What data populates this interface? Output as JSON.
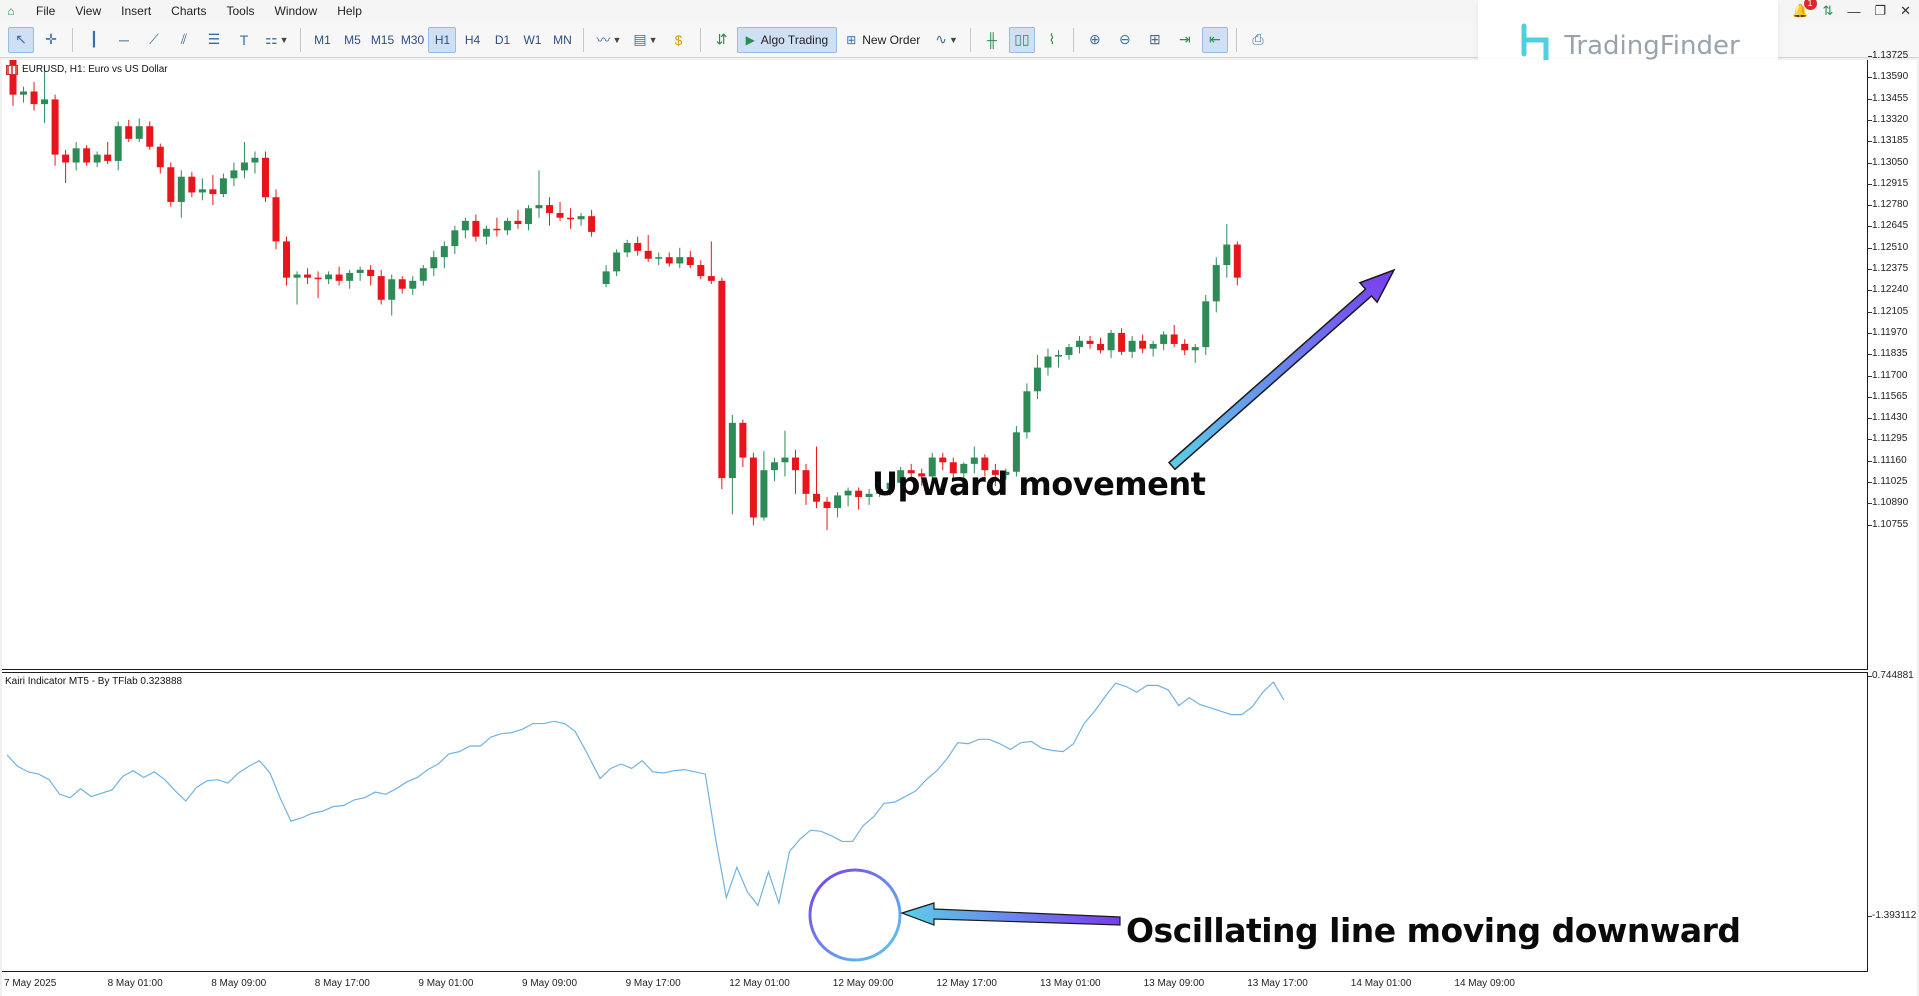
{
  "menu": {
    "items": [
      "File",
      "View",
      "Insert",
      "Charts",
      "Tools",
      "Window",
      "Help"
    ]
  },
  "window_controls": {
    "notifications_count": "1"
  },
  "toolbar": {
    "timeframes": [
      "M1",
      "M5",
      "M15",
      "M30",
      "H1",
      "H4",
      "D1",
      "W1",
      "MN"
    ],
    "active_timeframe": "H1",
    "algo_trading_label": "Algo Trading",
    "new_order_label": "New Order"
  },
  "watermark": {
    "text": "TradingFinder"
  },
  "chart": {
    "symbol_title": "EURUSD, H1:  Euro vs US Dollar",
    "indicator_title": "Kairi Indicator MT5 - By TFlab 0.323888",
    "price_scale": [
      "1.13725",
      "1.13590",
      "1.13455",
      "1.13320",
      "1.13185",
      "1.13050",
      "1.12915",
      "1.12780",
      "1.12645",
      "1.12510",
      "1.12375",
      "1.12240",
      "1.12105",
      "1.11970",
      "1.11835",
      "1.11700",
      "1.11565",
      "1.11430",
      "1.11295",
      "1.11160",
      "1.11025",
      "1.10890",
      "1.10755"
    ],
    "indicator_scale": [
      "0.744881",
      "-1.393112"
    ],
    "time_labels": [
      "7 May 2025",
      "8 May 01:00",
      "8 May 09:00",
      "8 May 17:00",
      "9 May 01:00",
      "9 May 09:00",
      "9 May 17:00",
      "12 May 01:00",
      "12 May 09:00",
      "12 May 17:00",
      "13 May 01:00",
      "13 May 09:00",
      "13 May 17:00",
      "14 May 01:00",
      "14 May 09:00"
    ],
    "annotation_upward": "Upward movement",
    "annotation_oscillating": "Oscillating line moving downward",
    "colors": {
      "bull": "#2e8b57",
      "bear": "#e8161c",
      "indicator_line": "#6fb3e0",
      "arrow_light": "#5ad0e8",
      "arrow_dark": "#7a3cf0"
    }
  },
  "chart_data": {
    "type": "candlestick",
    "symbol": "EURUSD",
    "timeframe": "H1",
    "ylim": [
      1.107,
      1.138
    ],
    "candles": [
      [
        1.1372,
        1.1376,
        1.1341,
        1.1348
      ],
      [
        1.1348,
        1.1353,
        1.1343,
        1.135
      ],
      [
        1.135,
        1.1356,
        1.1338,
        1.1342
      ],
      [
        1.1342,
        1.1366,
        1.133,
        1.1345
      ],
      [
        1.1345,
        1.1348,
        1.1303,
        1.131
      ],
      [
        1.131,
        1.1313,
        1.1292,
        1.1305
      ],
      [
        1.1305,
        1.1318,
        1.13,
        1.1314
      ],
      [
        1.1314,
        1.1316,
        1.1303,
        1.1305
      ],
      [
        1.1305,
        1.1312,
        1.1302,
        1.131
      ],
      [
        1.131,
        1.1318,
        1.1304,
        1.1306
      ],
      [
        1.1306,
        1.1331,
        1.13,
        1.1328
      ],
      [
        1.1328,
        1.1332,
        1.1318,
        1.132
      ],
      [
        1.132,
        1.1333,
        1.1318,
        1.1328
      ],
      [
        1.1328,
        1.1331,
        1.1313,
        1.1315
      ],
      [
        1.1315,
        1.1317,
        1.1298,
        1.1302
      ],
      [
        1.1302,
        1.1305,
        1.1277,
        1.128
      ],
      [
        1.128,
        1.13,
        1.127,
        1.1296
      ],
      [
        1.1296,
        1.1299,
        1.1283,
        1.1286
      ],
      [
        1.1286,
        1.1295,
        1.1281,
        1.1288
      ],
      [
        1.1288,
        1.1297,
        1.1278,
        1.1285
      ],
      [
        1.1285,
        1.1298,
        1.1283,
        1.1295
      ],
      [
        1.1295,
        1.1305,
        1.129,
        1.13
      ],
      [
        1.13,
        1.1318,
        1.1295,
        1.1305
      ],
      [
        1.1305,
        1.1312,
        1.1298,
        1.1308
      ],
      [
        1.1308,
        1.1312,
        1.128,
        1.1283
      ],
      [
        1.1283,
        1.1288,
        1.125,
        1.1255
      ],
      [
        1.1255,
        1.1258,
        1.1227,
        1.1232
      ],
      [
        1.1232,
        1.1236,
        1.1215,
        1.1234
      ],
      [
        1.1234,
        1.1238,
        1.1228,
        1.1232
      ],
      [
        1.1232,
        1.1236,
        1.1219,
        1.1231
      ],
      [
        1.1231,
        1.1236,
        1.1228,
        1.1234
      ],
      [
        1.1234,
        1.1239,
        1.1227,
        1.123
      ],
      [
        1.123,
        1.1237,
        1.1225,
        1.1235
      ],
      [
        1.1235,
        1.1239,
        1.123,
        1.1237
      ],
      [
        1.1237,
        1.124,
        1.1227,
        1.1233
      ],
      [
        1.1233,
        1.1237,
        1.1215,
        1.1218
      ],
      [
        1.1218,
        1.1234,
        1.1208,
        1.1231
      ],
      [
        1.1231,
        1.1233,
        1.1222,
        1.1225
      ],
      [
        1.1225,
        1.1233,
        1.1221,
        1.123
      ],
      [
        1.123,
        1.124,
        1.1227,
        1.1238
      ],
      [
        1.1238,
        1.1249,
        1.1233,
        1.1245
      ],
      [
        1.1245,
        1.1255,
        1.1238,
        1.1252
      ],
      [
        1.1252,
        1.1265,
        1.1247,
        1.1262
      ],
      [
        1.1262,
        1.127,
        1.1257,
        1.1268
      ],
      [
        1.1268,
        1.1272,
        1.1255,
        1.1258
      ],
      [
        1.1258,
        1.1265,
        1.1253,
        1.1263
      ],
      [
        1.1263,
        1.127,
        1.1258,
        1.1262
      ],
      [
        1.1262,
        1.127,
        1.1259,
        1.1268
      ],
      [
        1.1268,
        1.1275,
        1.1263,
        1.1266
      ],
      [
        1.1266,
        1.1278,
        1.1262,
        1.1276
      ],
      [
        1.1276,
        1.13,
        1.127,
        1.1278
      ],
      [
        1.1278,
        1.1283,
        1.1265,
        1.1273
      ],
      [
        1.1273,
        1.128,
        1.1268,
        1.127
      ],
      [
        1.127,
        1.1276,
        1.1263,
        1.1269
      ],
      [
        1.1269,
        1.1273,
        1.1265,
        1.1271
      ],
      [
        1.1271,
        1.1275,
        1.1258,
        1.1261
      ],
      [
        1.1228,
        1.124,
        1.1226,
        1.1236
      ],
      [
        1.1236,
        1.125,
        1.1233,
        1.1248
      ],
      [
        1.1248,
        1.1256,
        1.1245,
        1.1254
      ],
      [
        1.1254,
        1.1258,
        1.1246,
        1.1249
      ],
      [
        1.1249,
        1.1259,
        1.1242,
        1.1244
      ],
      [
        1.1244,
        1.1248,
        1.124,
        1.1245
      ],
      [
        1.1245,
        1.1248,
        1.1239,
        1.1241
      ],
      [
        1.1241,
        1.1251,
        1.1238,
        1.1245
      ],
      [
        1.1245,
        1.1249,
        1.1238,
        1.124
      ],
      [
        1.124,
        1.1243,
        1.1231,
        1.1233
      ],
      [
        1.1233,
        1.1255,
        1.1228,
        1.123
      ],
      [
        1.123,
        1.1232,
        1.1098,
        1.1105
      ],
      [
        1.1105,
        1.1145,
        1.1082,
        1.114
      ],
      [
        1.114,
        1.1142,
        1.1112,
        1.1118
      ],
      [
        1.1118,
        1.1121,
        1.1075,
        1.108
      ],
      [
        1.108,
        1.1122,
        1.1078,
        1.111
      ],
      [
        1.111,
        1.1118,
        1.1103,
        1.1115
      ],
      [
        1.1115,
        1.1135,
        1.1106,
        1.1118
      ],
      [
        1.1118,
        1.1123,
        1.1095,
        1.111
      ],
      [
        1.111,
        1.1114,
        1.1088,
        1.1095
      ],
      [
        1.1095,
        1.1125,
        1.1086,
        1.109
      ],
      [
        1.109,
        1.1093,
        1.1072,
        1.1086
      ],
      [
        1.1086,
        1.1096,
        1.108,
        1.1094
      ],
      [
        1.1094,
        1.1099,
        1.1087,
        1.1097
      ],
      [
        1.1097,
        1.1099,
        1.1085,
        1.1093
      ],
      [
        1.1093,
        1.1098,
        1.1088,
        1.1095
      ],
      [
        1.1095,
        1.1101,
        1.1093,
        1.1098
      ],
      [
        1.1098,
        1.1104,
        1.1094,
        1.1102
      ],
      [
        1.1102,
        1.1112,
        1.1099,
        1.111
      ],
      [
        1.111,
        1.1114,
        1.1105,
        1.1108
      ],
      [
        1.1108,
        1.1111,
        1.11,
        1.1106
      ],
      [
        1.1106,
        1.1121,
        1.11,
        1.1118
      ],
      [
        1.1118,
        1.1121,
        1.111,
        1.1115
      ],
      [
        1.1115,
        1.1118,
        1.1105,
        1.1108
      ],
      [
        1.1108,
        1.1115,
        1.1103,
        1.1114
      ],
      [
        1.1114,
        1.1125,
        1.1108,
        1.1118
      ],
      [
        1.1118,
        1.112,
        1.1106,
        1.111
      ],
      [
        1.111,
        1.1114,
        1.11,
        1.1107
      ],
      [
        1.1107,
        1.1111,
        1.1104,
        1.1109
      ],
      [
        1.1109,
        1.1138,
        1.1106,
        1.1134
      ],
      [
        1.1134,
        1.1165,
        1.113,
        1.116
      ],
      [
        1.116,
        1.1183,
        1.1155,
        1.1175
      ],
      [
        1.1175,
        1.1187,
        1.117,
        1.1182
      ],
      [
        1.1182,
        1.1186,
        1.1175,
        1.1183
      ],
      [
        1.1183,
        1.119,
        1.118,
        1.1188
      ],
      [
        1.1188,
        1.1195,
        1.1184,
        1.1192
      ],
      [
        1.1192,
        1.1195,
        1.1187,
        1.119
      ],
      [
        1.119,
        1.1194,
        1.1184,
        1.1186
      ],
      [
        1.1186,
        1.1199,
        1.1181,
        1.1197
      ],
      [
        1.1197,
        1.12,
        1.1183,
        1.1185
      ],
      [
        1.1185,
        1.1195,
        1.1181,
        1.1192
      ],
      [
        1.1192,
        1.1196,
        1.1184,
        1.1187
      ],
      [
        1.1187,
        1.1192,
        1.1182,
        1.119
      ],
      [
        1.119,
        1.1198,
        1.1186,
        1.1196
      ],
      [
        1.1196,
        1.1202,
        1.1188,
        1.119
      ],
      [
        1.119,
        1.1193,
        1.1183,
        1.1186
      ],
      [
        1.1186,
        1.119,
        1.1178,
        1.1188
      ],
      [
        1.1188,
        1.1221,
        1.1183,
        1.1217
      ],
      [
        1.1217,
        1.1245,
        1.121,
        1.124
      ],
      [
        1.124,
        1.1266,
        1.1232,
        1.1253
      ],
      [
        1.1253,
        1.1255,
        1.1227,
        1.1232
      ]
    ],
    "indicator": {
      "name": "Kairi Indicator MT5 - By TFlab",
      "value": 0.323888,
      "ylim": [
        -1.393112,
        0.744881
      ],
      "values": [
        0.05,
        -0.05,
        -0.1,
        -0.12,
        -0.17,
        -0.3,
        -0.33,
        -0.25,
        -0.32,
        -0.29,
        -0.26,
        -0.14,
        -0.09,
        -0.15,
        -0.1,
        -0.17,
        -0.27,
        -0.36,
        -0.24,
        -0.18,
        -0.17,
        -0.2,
        -0.11,
        -0.05,
        0.0,
        -0.11,
        -0.34,
        -0.54,
        -0.51,
        -0.47,
        -0.45,
        -0.41,
        -0.4,
        -0.35,
        -0.33,
        -0.28,
        -0.3,
        -0.25,
        -0.19,
        -0.15,
        -0.08,
        -0.03,
        0.06,
        0.08,
        0.13,
        0.13,
        0.21,
        0.24,
        0.25,
        0.28,
        0.33,
        0.33,
        0.35,
        0.33,
        0.26,
        0.09,
        -0.16,
        -0.07,
        -0.03,
        -0.07,
        0.0,
        -0.1,
        -0.11,
        -0.09,
        -0.08,
        -0.1,
        -0.12,
        -0.71,
        -1.22,
        -0.95,
        -1.17,
        -1.29,
        -0.99,
        -1.27,
        -0.81,
        -0.7,
        -0.62,
        -0.63,
        -0.67,
        -0.72,
        -0.72,
        -0.58,
        -0.5,
        -0.38,
        -0.37,
        -0.32,
        -0.27,
        -0.17,
        -0.09,
        0.02,
        0.16,
        0.15,
        0.19,
        0.19,
        0.15,
        0.1,
        0.16,
        0.17,
        0.11,
        0.09,
        0.08,
        0.15,
        0.33,
        0.44,
        0.57,
        0.69,
        0.66,
        0.61,
        0.67,
        0.67,
        0.63,
        0.49,
        0.56,
        0.5,
        0.47,
        0.44,
        0.41,
        0.41,
        0.48,
        0.61,
        0.7,
        0.54
      ]
    }
  }
}
